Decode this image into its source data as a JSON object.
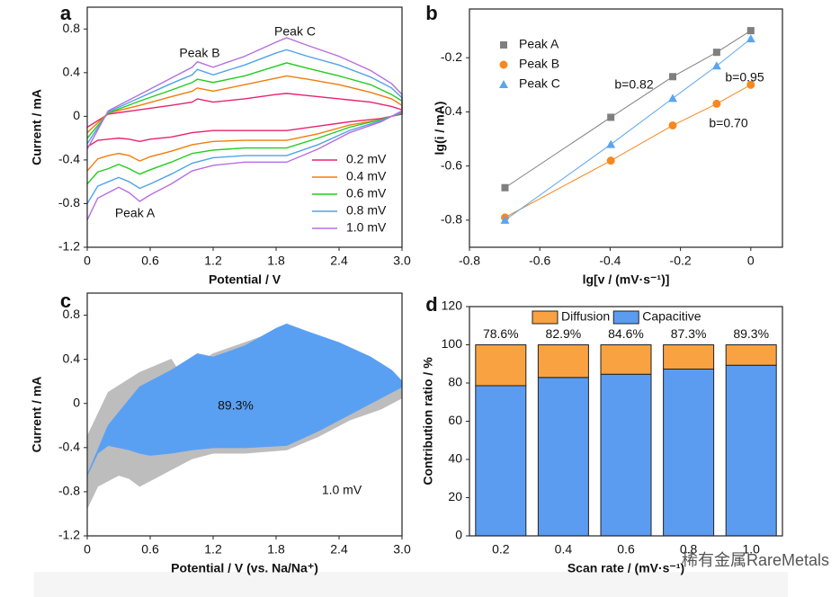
{
  "chart_data": [
    {
      "type": "line",
      "label": "a",
      "xlabel": "Potential / V",
      "ylabel": "Current / mA",
      "xlim": [
        0,
        3
      ],
      "ylim": [
        -1.2,
        1.0
      ],
      "xticks": [
        0,
        0.6,
        1.2,
        1.8,
        2.4,
        {
          "value": 3,
          "label": "3.0"
        }
      ],
      "yticks": [
        -1.2,
        -0.8,
        -0.4,
        0,
        0.4,
        0.8
      ],
      "legend": "lower right",
      "annotations": [
        "Peak A",
        "Peak B",
        "Peak C"
      ],
      "x": [
        0,
        0.2,
        0.5,
        0.8,
        1,
        1.05,
        1.2,
        1.5,
        1.8,
        1.9,
        2.1,
        2.4,
        2.7,
        2.9,
        3,
        3,
        2.8,
        2.5,
        2.2,
        1.9,
        1.5,
        1.2,
        1,
        0.8,
        0.6,
        0.5,
        0.4,
        0.3,
        0.2,
        0.1,
        0
      ],
      "series": [
        {
          "name": "0.2 mV",
          "color": "#e8226e",
          "values": [
            -0.1,
            0.02,
            0.06,
            0.1,
            0.13,
            0.16,
            0.13,
            0.16,
            0.2,
            0.21,
            0.19,
            0.16,
            0.13,
            0.09,
            0.06,
            0.02,
            -0.02,
            -0.05,
            -0.09,
            -0.13,
            -0.13,
            -0.13,
            -0.15,
            -0.19,
            -0.21,
            -0.23,
            -0.21,
            -0.2,
            -0.21,
            -0.22,
            -0.28
          ]
        },
        {
          "name": "0.4 mV",
          "color": "#f07d0a",
          "values": [
            -0.15,
            0.03,
            0.1,
            0.18,
            0.23,
            0.26,
            0.23,
            0.29,
            0.35,
            0.37,
            0.34,
            0.29,
            0.22,
            0.16,
            0.1,
            0.03,
            -0.03,
            -0.08,
            -0.16,
            -0.22,
            -0.22,
            -0.23,
            -0.26,
            -0.32,
            -0.37,
            -0.41,
            -0.36,
            -0.34,
            -0.36,
            -0.39,
            -0.5
          ]
        },
        {
          "name": "0.6 mV",
          "color": "#22cc22",
          "values": [
            -0.2,
            0.03,
            0.14,
            0.24,
            0.31,
            0.34,
            0.31,
            0.37,
            0.46,
            0.49,
            0.44,
            0.37,
            0.29,
            0.2,
            0.14,
            0.03,
            -0.03,
            -0.1,
            -0.2,
            -0.29,
            -0.29,
            -0.31,
            -0.34,
            -0.42,
            -0.49,
            -0.53,
            -0.48,
            -0.44,
            -0.48,
            -0.51,
            -0.62
          ]
        },
        {
          "name": "0.8 mV",
          "color": "#4fa3e8",
          "values": [
            -0.25,
            0.04,
            0.17,
            0.3,
            0.38,
            0.43,
            0.38,
            0.47,
            0.58,
            0.61,
            0.55,
            0.47,
            0.36,
            0.26,
            0.17,
            0.04,
            -0.04,
            -0.13,
            -0.26,
            -0.36,
            -0.36,
            -0.38,
            -0.43,
            -0.53,
            -0.62,
            -0.66,
            -0.6,
            -0.56,
            -0.6,
            -0.64,
            -0.8
          ]
        },
        {
          "name": "1.0 mV",
          "color": "#b86ee0",
          "values": [
            -0.3,
            0.05,
            0.2,
            0.35,
            0.45,
            0.5,
            0.45,
            0.55,
            0.68,
            0.72,
            0.65,
            0.55,
            0.42,
            0.3,
            0.2,
            0.05,
            -0.05,
            -0.15,
            -0.3,
            -0.42,
            -0.42,
            -0.45,
            -0.5,
            -0.62,
            -0.72,
            -0.78,
            -0.7,
            -0.65,
            -0.7,
            -0.75,
            -0.95
          ]
        }
      ]
    },
    {
      "type": "scatter",
      "label": "b",
      "xlabel": "lg[v / (mV·s⁻¹)]",
      "ylabel": "lg(i / mA)",
      "xlim": [
        -0.8,
        0.09
      ],
      "ylim": [
        -0.9,
        -0.02
      ],
      "xticks": [
        -0.8,
        -0.6,
        -0.4,
        -0.2,
        0
      ],
      "yticks": [
        -0.8,
        -0.6,
        -0.4,
        -0.2
      ],
      "legend": "upper left",
      "annotations": [
        "b=0.82",
        "b=0.95",
        "b=0.70"
      ],
      "x": [
        -0.699,
        -0.398,
        -0.222,
        -0.097,
        0
      ],
      "series": [
        {
          "name": "Peak A",
          "color": "#7f7f7f",
          "marker": "square",
          "values": [
            -0.68,
            -0.42,
            -0.27,
            -0.18,
            -0.1
          ]
        },
        {
          "name": "Peak B",
          "color": "#f7881f",
          "marker": "circle",
          "values": [
            -0.79,
            -0.58,
            -0.45,
            -0.37,
            -0.3
          ]
        },
        {
          "name": "Peak C",
          "color": "#5aa5f0",
          "marker": "triangle",
          "values": [
            -0.8,
            -0.52,
            -0.35,
            -0.23,
            -0.13
          ]
        }
      ]
    },
    {
      "type": "area",
      "label": "c",
      "xlabel": "Potential / V (vs. Na/Na⁺)",
      "ylabel": "Current / mA",
      "xlim": [
        0,
        3
      ],
      "ylim": [
        -1.2,
        1.0
      ],
      "xticks": [
        0,
        0.6,
        1.2,
        1.8,
        2.4,
        {
          "value": 3,
          "label": "3.0"
        }
      ],
      "yticks": [
        -1.2,
        -0.8,
        -0.4,
        0,
        0.4,
        0.8
      ],
      "annotations": [
        "89.3%",
        "1.0 mV"
      ],
      "x": [
        0,
        0.2,
        0.5,
        0.8,
        1,
        1.05,
        1.2,
        1.5,
        1.8,
        1.9,
        2.1,
        2.4,
        2.7,
        2.9,
        3,
        3,
        2.8,
        2.5,
        2.2,
        1.9,
        1.5,
        1.2,
        1,
        0.8,
        0.6,
        0.5,
        0.4,
        0.3,
        0.2,
        0.1,
        0
      ],
      "series": [
        {
          "color": "#bdbdbd",
          "values": [
            -0.3,
            0.1,
            0.28,
            0.4,
            0.1,
            0.35,
            0.45,
            0.55,
            0.65,
            0.7,
            0.63,
            0.55,
            0.42,
            0.3,
            0.2,
            0.05,
            -0.05,
            -0.15,
            -0.3,
            -0.42,
            -0.45,
            -0.45,
            -0.5,
            -0.6,
            -0.7,
            -0.75,
            -0.68,
            -0.65,
            -0.7,
            -0.75,
            -0.95
          ]
        },
        {
          "color": "#5aa0f2",
          "values": [
            -0.65,
            -0.2,
            0.15,
            0.3,
            0.42,
            0.45,
            0.42,
            0.52,
            0.68,
            0.72,
            0.65,
            0.55,
            0.42,
            0.3,
            0.2,
            0.15,
            0.05,
            -0.1,
            -0.25,
            -0.38,
            -0.4,
            -0.4,
            -0.42,
            -0.45,
            -0.47,
            -0.45,
            -0.42,
            -0.4,
            -0.38,
            -0.45,
            -0.65
          ]
        }
      ]
    },
    {
      "type": "bar",
      "label": "d",
      "stacked": true,
      "xlabel": "Scan rate / (mV·s⁻¹)",
      "ylabel": "Contribution ratio / %",
      "ylim": [
        0,
        120
      ],
      "yticks": [
        0,
        20,
        40,
        60,
        80,
        100,
        120
      ],
      "legend": "upper center",
      "categories": [
        "0.2",
        "0.4",
        "0.6",
        "0.8",
        "1.0"
      ],
      "series": [
        {
          "name": "Capacitive",
          "color": "#5b9cf0",
          "values": [
            78.6,
            82.9,
            84.6,
            87.3,
            89.3
          ],
          "value_labels": [
            "78.6%",
            "82.9%",
            "84.6%",
            "87.3%",
            "89.3%"
          ]
        },
        {
          "name": "Diffusion",
          "color": "#f8a242",
          "values": [
            21.4,
            17.1,
            15.4,
            12.7,
            10.7
          ]
        }
      ]
    }
  ],
  "watermark": "稀有金属RareMetals"
}
